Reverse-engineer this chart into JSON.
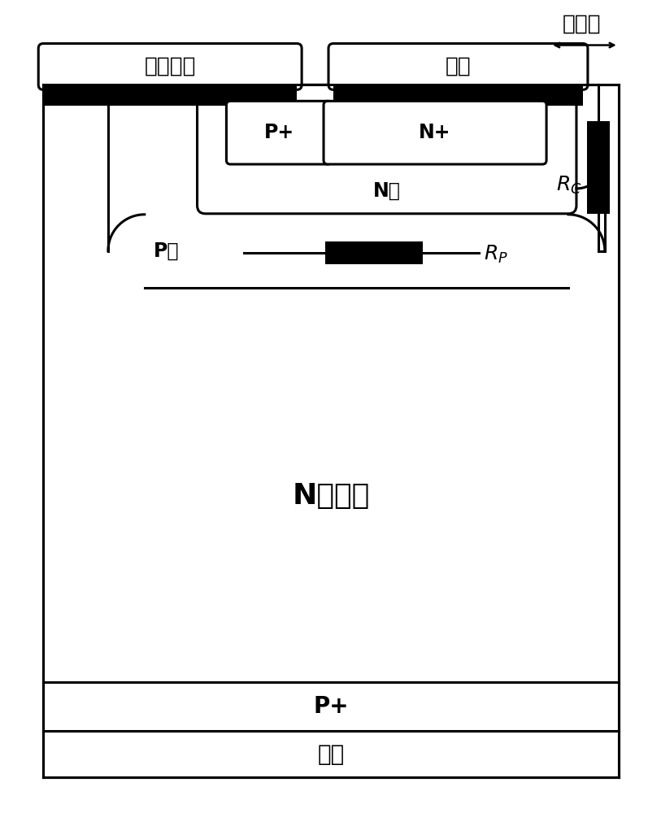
{
  "fig_width": 8.13,
  "fig_height": 10.0,
  "bg_color": "#ffffff",
  "line_color": "#000000",
  "label_gate": "多晶硬栀",
  "label_cathode": "阴极",
  "label_shortregion": "短路区",
  "label_Pplus": "P+",
  "label_Nplus": "N+",
  "label_Nwell": "N阱",
  "label_Pwell": "P阱",
  "label_Ndrift": "N漂移区",
  "label_Pplus_bot": "P+",
  "label_anode": "阳极"
}
